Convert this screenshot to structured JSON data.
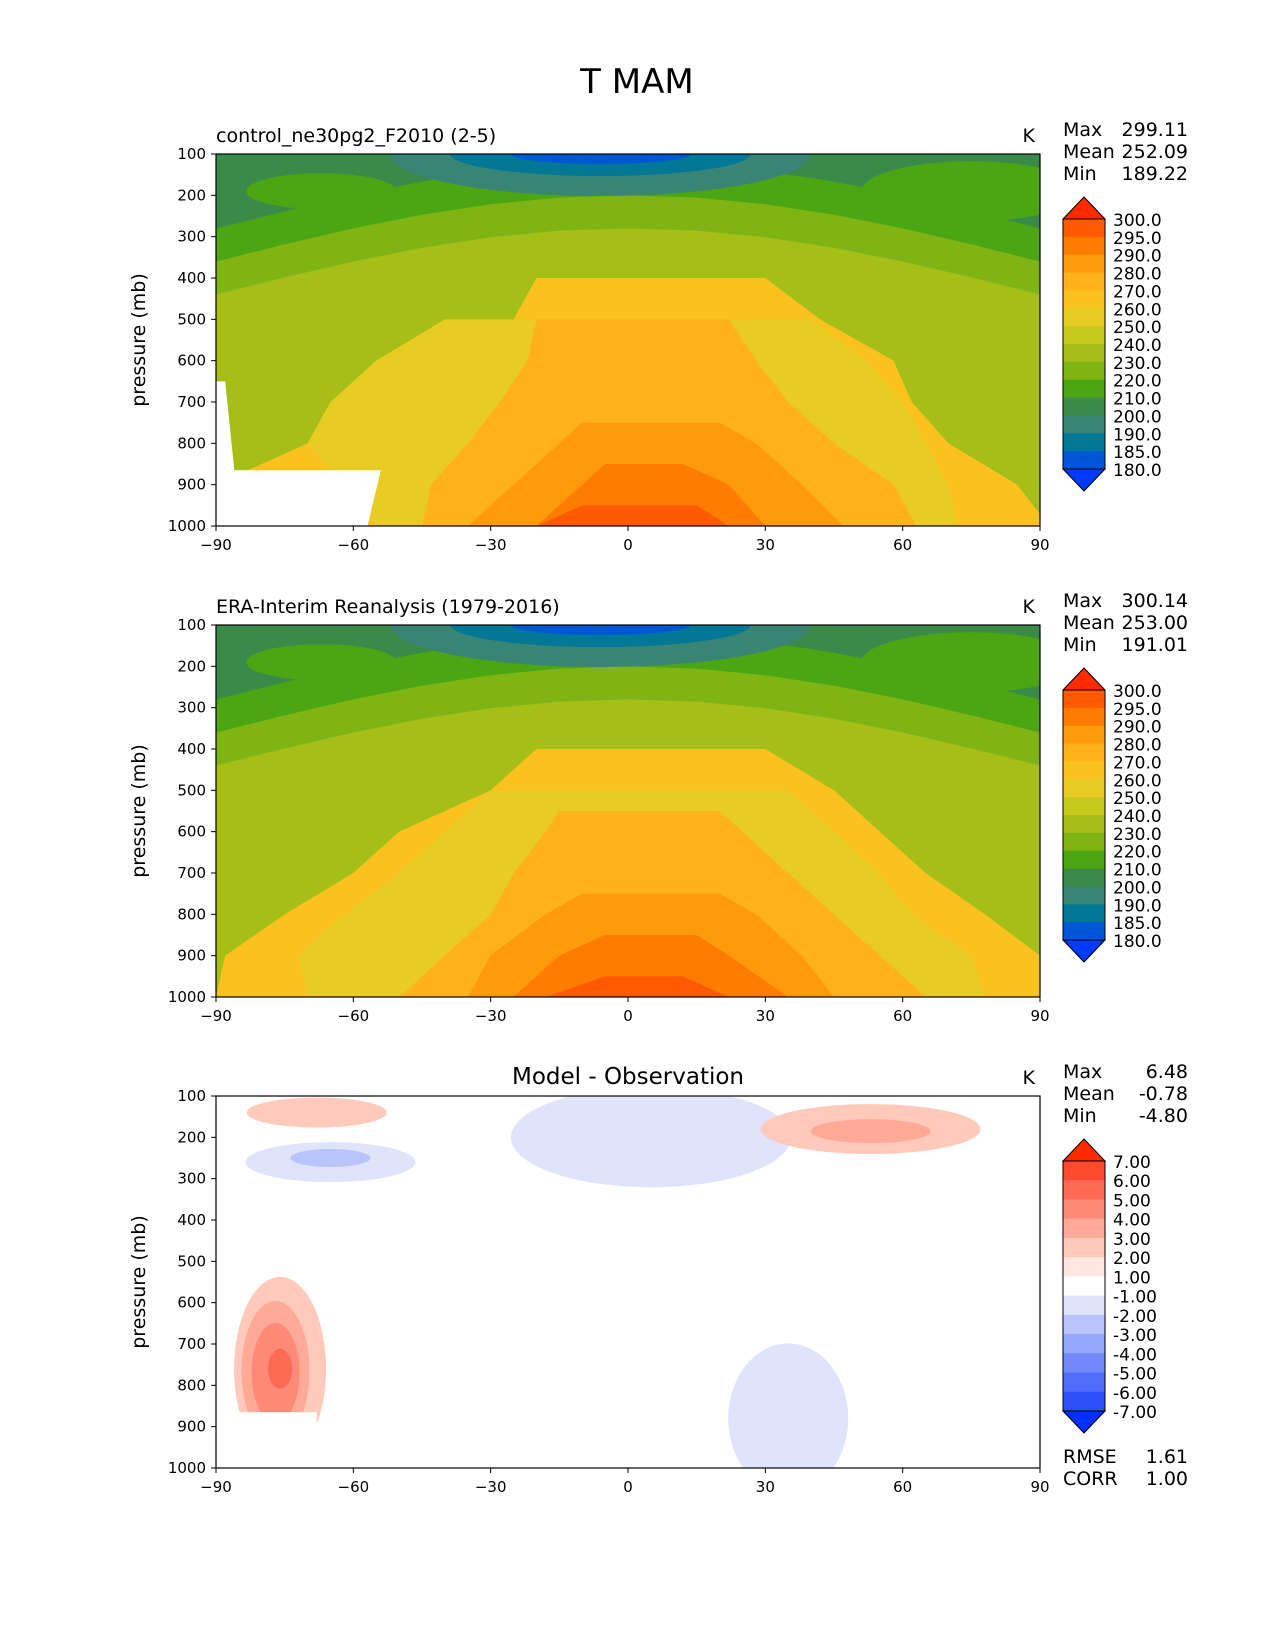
{
  "figure_title": "T MAM",
  "axes_common": {
    "ylabel": "pressure (mb)",
    "yticks": [
      "100",
      "200",
      "300",
      "400",
      "500",
      "600",
      "700",
      "800",
      "900",
      "1000"
    ],
    "xticks": [
      "−90",
      "−60",
      "−30",
      "0",
      "30",
      "60",
      "90"
    ]
  },
  "chart_data": [
    {
      "type": "heatmap",
      "left_title": "control_ne30pg2_F2010 (2-5)",
      "center_title": "",
      "units": "K",
      "stats": [
        {
          "label": "Max",
          "value": "299.11"
        },
        {
          "label": "Mean",
          "value": "252.09"
        },
        {
          "label": "Min",
          "value": "189.22"
        }
      ],
      "extra_stats": [],
      "xlim": [
        -90,
        90
      ],
      "ylim": [
        1000,
        100
      ],
      "levels": [
        "300.0",
        "295.0",
        "290.0",
        "280.0",
        "270.0",
        "260.0",
        "250.0",
        "240.0",
        "230.0",
        "220.0",
        "210.0",
        "200.0",
        "190.0",
        "185.0",
        "180.0"
      ],
      "colors": [
        "#ff2a00",
        "#ff5a00",
        "#ff7c00",
        "#ff9a0a",
        "#ffb21a",
        "#fbc21f",
        "#e8cc24",
        "#c6c81c",
        "#a6be18",
        "#7fb414",
        "#4ca613",
        "#3a8a4a",
        "#3a8476",
        "#007896",
        "#0057d6",
        "#0039ff"
      ],
      "bands": [
        {
          "level": "270.0",
          "rows": [
            [
              1000,
              -92,
              92
            ],
            [
              900,
              -90,
              85
            ],
            [
              800,
              -70,
              70
            ],
            [
              700,
              -55,
              62
            ],
            [
              600,
              -45,
              58
            ],
            [
              500,
              -25,
              42
            ],
            [
              400,
              -20,
              30
            ]
          ]
        },
        {
          "level": "260.0",
          "rows": [
            [
              1000,
              -55,
              72
            ],
            [
              900,
              -62,
              70
            ],
            [
              800,
              -70,
              65
            ],
            [
              700,
              -65,
              60
            ],
            [
              600,
              -55,
              52
            ],
            [
              500,
              -40,
              40
            ]
          ]
        },
        {
          "level": "280.0",
          "rows": [
            [
              1000,
              -45,
              63
            ],
            [
              900,
              -43,
              58
            ],
            [
              800,
              -35,
              45
            ],
            [
              700,
              -28,
              35
            ],
            [
              600,
              -22,
              28
            ],
            [
              500,
              -20,
              22
            ]
          ]
        },
        {
          "level": "290.0",
          "rows": [
            [
              1000,
              -35,
              47
            ],
            [
              900,
              -25,
              38
            ],
            [
              800,
              -15,
              28
            ],
            [
              750,
              -10,
              20
            ]
          ]
        },
        {
          "level": "295.0",
          "rows": [
            [
              1000,
              -20,
              30
            ],
            [
              900,
              -10,
              22
            ],
            [
              850,
              -5,
              12
            ]
          ]
        },
        {
          "level": "300.0",
          "rows": [
            [
              1000,
              -20,
              22
            ],
            [
              950,
              -10,
              15
            ]
          ]
        }
      ],
      "missing_region": {
        "lat_max": -57,
        "p_min": 650
      }
    },
    {
      "type": "heatmap",
      "left_title": "ERA-Interim Reanalysis (1979-2016)",
      "center_title": "",
      "units": "K",
      "stats": [
        {
          "label": "Max",
          "value": "300.14"
        },
        {
          "label": "Mean",
          "value": "253.00"
        },
        {
          "label": "Min",
          "value": "191.01"
        }
      ],
      "extra_stats": [],
      "xlim": [
        -90,
        90
      ],
      "ylim": [
        1000,
        100
      ],
      "levels": [
        "300.0",
        "295.0",
        "290.0",
        "280.0",
        "270.0",
        "260.0",
        "250.0",
        "240.0",
        "230.0",
        "220.0",
        "210.0",
        "200.0",
        "190.0",
        "185.0",
        "180.0"
      ],
      "colors": [
        "#ff2a00",
        "#ff5a00",
        "#ff7c00",
        "#ff9a0a",
        "#ffb21a",
        "#fbc21f",
        "#e8cc24",
        "#c6c81c",
        "#a6be18",
        "#7fb414",
        "#4ca613",
        "#3a8a4a",
        "#3a8476",
        "#007896",
        "#0057d6",
        "#0039ff"
      ],
      "bands": [
        {
          "level": "270.0",
          "rows": [
            [
              1000,
              -90,
              92
            ],
            [
              900,
              -88,
              90
            ],
            [
              800,
              -75,
              78
            ],
            [
              700,
              -60,
              65
            ],
            [
              600,
              -50,
              55
            ],
            [
              500,
              -30,
              45
            ],
            [
              400,
              -20,
              30
            ]
          ]
        },
        {
          "level": "260.0",
          "rows": [
            [
              1000,
              -70,
              78
            ],
            [
              900,
              -72,
              75
            ],
            [
              800,
              -62,
              62
            ],
            [
              700,
              -50,
              55
            ],
            [
              600,
              -40,
              45
            ],
            [
              500,
              -30,
              35
            ]
          ]
        },
        {
          "level": "280.0",
          "rows": [
            [
              1000,
              -50,
              65
            ],
            [
              900,
              -40,
              55
            ],
            [
              800,
              -30,
              45
            ],
            [
              700,
              -25,
              35
            ],
            [
              600,
              -18,
              25
            ],
            [
              550,
              -15,
              20
            ]
          ]
        },
        {
          "level": "290.0",
          "rows": [
            [
              1000,
              -35,
              45
            ],
            [
              900,
              -30,
              38
            ],
            [
              800,
              -18,
              28
            ],
            [
              750,
              -10,
              20
            ]
          ]
        },
        {
          "level": "295.0",
          "rows": [
            [
              1000,
              -25,
              35
            ],
            [
              900,
              -15,
              22
            ],
            [
              850,
              -5,
              15
            ]
          ]
        },
        {
          "level": "300.0",
          "rows": [
            [
              1000,
              -18,
              22
            ],
            [
              950,
              -5,
              12
            ]
          ]
        }
      ],
      "missing_region": null
    },
    {
      "type": "heatmap",
      "left_title": "",
      "center_title": "Model - Observation",
      "units": "K",
      "stats": [
        {
          "label": "Max",
          "value": "6.48"
        },
        {
          "label": "Mean",
          "value": "-0.78"
        },
        {
          "label": "Min",
          "value": "-4.80"
        }
      ],
      "extra_stats": [
        {
          "label": "RMSE",
          "value": "1.61"
        },
        {
          "label": "CORR",
          "value": "1.00"
        }
      ],
      "xlim": [
        -90,
        90
      ],
      "ylim": [
        1000,
        100
      ],
      "levels": [
        "7.00",
        "6.00",
        "5.00",
        "4.00",
        "3.00",
        "2.00",
        "1.00",
        "-1.00",
        "-2.00",
        "-3.00",
        "-4.00",
        "-5.00",
        "-6.00",
        "-7.00"
      ],
      "colors": [
        "#ff2a00",
        "#ff4a30",
        "#ff6a55",
        "#ff8a78",
        "#ffaa98",
        "#ffcabb",
        "#ffe6e0",
        "#ffffff",
        "#dfe4fb",
        "#b8c4fb",
        "#96a8fb",
        "#7288fb",
        "#4f6cfb",
        "#2d50fb",
        "#0030ff"
      ]
    }
  ]
}
